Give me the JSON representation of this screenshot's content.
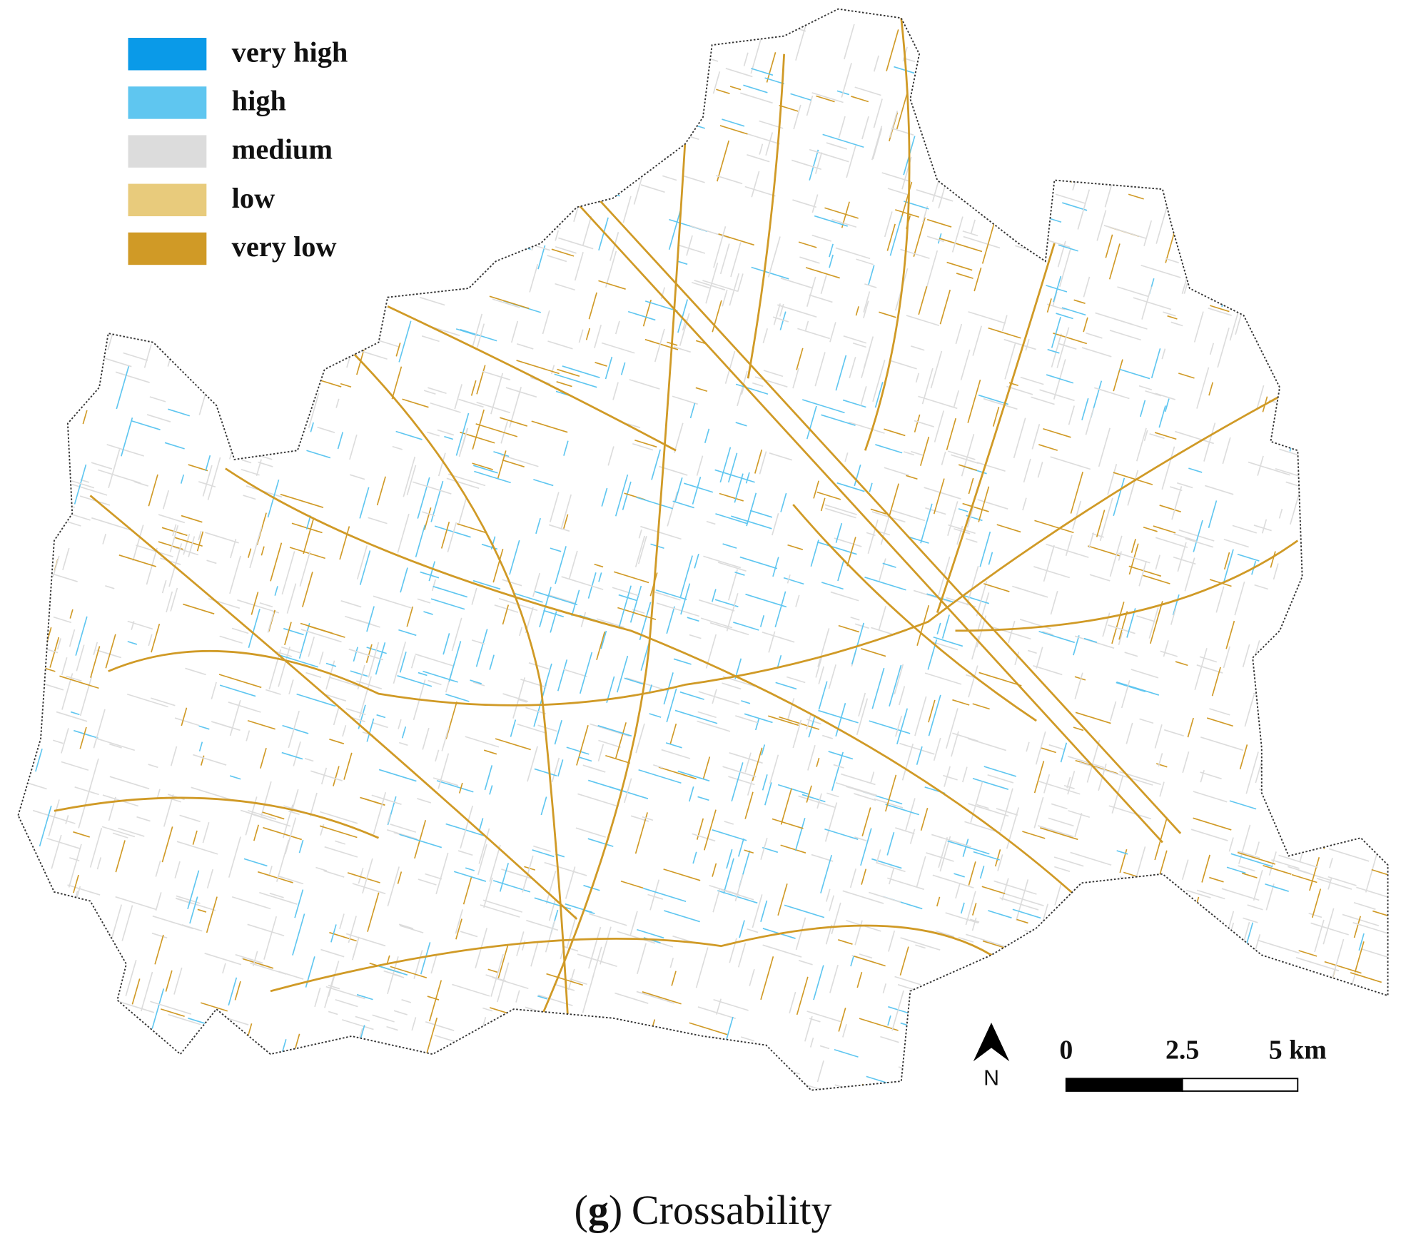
{
  "legend": [
    {
      "label": "very high",
      "color": "#0a9ae8"
    },
    {
      "label": "high",
      "color": "#5fc6f0"
    },
    {
      "label": "medium",
      "color": "#dcdcdc"
    },
    {
      "label": "low",
      "color": "#e8cb7c"
    },
    {
      "label": "very low",
      "color": "#d09a26"
    }
  ],
  "north_arrow": {
    "label": "N"
  },
  "scale_bar": {
    "labels": [
      "0",
      "2.5",
      "5 km"
    ]
  },
  "caption": {
    "open": "(",
    "letter": "g",
    "close": ")",
    "title": "Crossability"
  }
}
